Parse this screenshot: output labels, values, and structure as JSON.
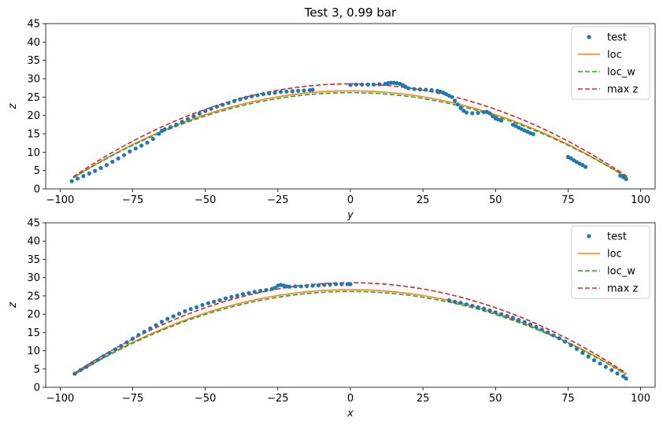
{
  "chart_data": [
    {
      "type": "line",
      "title": "Test 3, 0.99 bar",
      "xlabel": "y",
      "ylabel": "z",
      "xlim": [
        -105,
        105
      ],
      "ylim": [
        0,
        45
      ],
      "xticks": [
        -100,
        -75,
        -50,
        -25,
        0,
        25,
        50,
        75,
        100
      ],
      "xtick_labels": [
        "−100",
        "−75",
        "−50",
        "−25",
        "0",
        "25",
        "50",
        "75",
        "100"
      ],
      "yticks": [
        0,
        5,
        10,
        15,
        20,
        25,
        30,
        35,
        40,
        45
      ],
      "ytick_labels": [
        "0",
        "5",
        "10",
        "15",
        "20",
        "25",
        "30",
        "35",
        "40",
        "45"
      ],
      "legend": {
        "position": "top-right",
        "entries": [
          "test",
          "loc",
          "loc_w",
          "max z"
        ]
      },
      "series": [
        {
          "name": "test",
          "style": "markers",
          "color": "#1f77b4",
          "segments": [
            {
              "x": [
                -96,
                -94,
                -92,
                -90,
                -88,
                -86,
                -84,
                -82,
                -80,
                -78,
                -76,
                -74,
                -72,
                -70,
                -68,
                -66,
                -65,
                -64,
                -62,
                -60,
                -58,
                -56,
                -54,
                -52,
                -50,
                -48,
                -46,
                -44,
                -42,
                -40,
                -38,
                -36,
                -34,
                -32,
                -30,
                -28,
                -26,
                -24,
                -22,
                -20,
                -18,
                -16,
                -14,
                -13
              ],
              "y": [
                2.1,
                2.8,
                3.5,
                4.2,
                4.9,
                5.7,
                6.5,
                7.4,
                8.3,
                9.2,
                10.2,
                11.0,
                11.8,
                12.6,
                13.6,
                15.0,
                15.8,
                16.2,
                16.8,
                17.5,
                18.3,
                19.0,
                19.8,
                20.5,
                21.2,
                21.8,
                22.4,
                22.9,
                23.4,
                23.9,
                24.4,
                24.8,
                25.2,
                25.5,
                25.8,
                26.0,
                26.2,
                26.4,
                26.5,
                26.6,
                26.7,
                26.8,
                26.9,
                27.0
              ]
            },
            {
              "x": [
                0,
                2,
                4,
                6,
                8,
                10,
                12,
                13,
                14,
                15,
                16,
                17,
                18,
                19,
                20,
                22,
                24,
                26,
                28,
                30,
                31,
                32,
                33,
                34,
                35,
                36,
                37,
                38,
                39,
                40,
                42,
                44,
                46,
                47,
                48,
                49,
                50,
                51,
                52
              ],
              "y": [
                28.3,
                28.4,
                28.4,
                28.4,
                28.4,
                28.5,
                28.6,
                28.8,
                28.9,
                28.9,
                28.8,
                28.6,
                28.3,
                27.8,
                27.4,
                27.2,
                27.1,
                27.0,
                26.9,
                26.7,
                26.5,
                26.2,
                25.8,
                25.4,
                25.0,
                24.0,
                23.0,
                22.0,
                21.3,
                20.8,
                20.6,
                20.7,
                20.9,
                21.0,
                20.6,
                19.8,
                19.2,
                18.9,
                18.6
              ]
            },
            {
              "x": [
                56,
                57,
                58,
                59,
                60,
                61,
                62,
                63
              ],
              "y": [
                17.5,
                17.1,
                16.7,
                16.3,
                15.9,
                15.6,
                15.2,
                14.9
              ]
            },
            {
              "x": [
                75,
                76,
                77,
                78,
                79,
                80,
                81
              ],
              "y": [
                8.7,
                8.3,
                7.8,
                7.3,
                6.9,
                6.5,
                6.0
              ]
            },
            {
              "x": [
                93,
                94,
                95
              ],
              "y": [
                3.6,
                3.2,
                2.7
              ]
            }
          ]
        },
        {
          "name": "loc",
          "style": "solid",
          "color": "#ff7f0e",
          "x_from": -95.5,
          "x_to": 95.5,
          "peak": 26.7,
          "end": 3.0
        },
        {
          "name": "loc_w",
          "style": "dashed",
          "color": "#2ca02c",
          "x_from": -95.5,
          "x_to": 95.5,
          "peak": 26.2,
          "end": 3.0
        },
        {
          "name": "max z",
          "style": "dashed",
          "color": "#d62728",
          "x_from": -95.5,
          "x_to": 95.5,
          "peak": 28.6,
          "end": 3.3
        }
      ]
    },
    {
      "type": "line",
      "title": "",
      "xlabel": "x",
      "ylabel": "z",
      "xlim": [
        -105,
        105
      ],
      "ylim": [
        0,
        45
      ],
      "xticks": [
        -100,
        -75,
        -50,
        -25,
        0,
        25,
        50,
        75,
        100
      ],
      "xtick_labels": [
        "−100",
        "−75",
        "−50",
        "−25",
        "0",
        "25",
        "50",
        "75",
        "100"
      ],
      "yticks": [
        0,
        5,
        10,
        15,
        20,
        25,
        30,
        35,
        40,
        45
      ],
      "ytick_labels": [
        "0",
        "5",
        "10",
        "15",
        "20",
        "25",
        "30",
        "35",
        "40",
        "45"
      ],
      "legend": {
        "position": "top-right",
        "entries": [
          "test",
          "loc",
          "loc_w",
          "max z"
        ]
      },
      "series": [
        {
          "name": "test",
          "style": "markers",
          "color": "#1f77b4",
          "segments": [
            {
              "x": [
                -95,
                -93,
                -91,
                -89,
                -87,
                -85,
                -83,
                -81,
                -79,
                -77,
                -75,
                -73,
                -71,
                -69,
                -67,
                -65,
                -63,
                -61,
                -59,
                -57,
                -55,
                -53,
                -51,
                -49,
                -47,
                -45,
                -43,
                -41,
                -39,
                -37,
                -35,
                -33,
                -31,
                -29,
                -27,
                -26,
                -25,
                -24,
                -23,
                -22,
                -21,
                -19,
                -17,
                -15,
                -13,
                -11,
                -9,
                -7,
                -5,
                -3,
                -1,
                0
              ],
              "y": [
                3.7,
                4.7,
                5.6,
                6.6,
                7.5,
                8.5,
                9.4,
                10.4,
                11.3,
                12.3,
                13.3,
                14.3,
                15.2,
                16.1,
                17.0,
                17.9,
                18.7,
                19.4,
                20.1,
                20.8,
                21.4,
                21.9,
                22.5,
                23.0,
                23.4,
                23.8,
                24.3,
                24.7,
                25.1,
                25.5,
                25.8,
                26.1,
                26.4,
                26.6,
                26.9,
                27.2,
                27.8,
                28.0,
                27.8,
                27.6,
                27.5,
                27.6,
                27.6,
                27.7,
                27.8,
                27.9,
                28.0,
                28.1,
                28.2,
                28.2,
                28.2,
                28.2
              ]
            },
            {
              "x": [
                34,
                36,
                38,
                40,
                42,
                44,
                46,
                48,
                50,
                52,
                54,
                56,
                58,
                60,
                62,
                64,
                66,
                68,
                70,
                72,
                74,
                76,
                78,
                80,
                82,
                84,
                86,
                88,
                90,
                92,
                94,
                95
              ],
              "y": [
                23.8,
                23.4,
                23.1,
                22.7,
                22.3,
                21.9,
                21.5,
                21.0,
                20.5,
                20.0,
                19.5,
                19.0,
                18.4,
                17.8,
                17.2,
                16.5,
                15.8,
                15.0,
                14.2,
                13.4,
                12.5,
                11.5,
                10.5,
                9.4,
                8.4,
                7.4,
                6.5,
                5.6,
                4.7,
                3.8,
                3.0,
                2.4
              ]
            }
          ]
        },
        {
          "name": "loc",
          "style": "solid",
          "color": "#ff7f0e",
          "x_from": -95,
          "x_to": 95,
          "peak": 26.7,
          "end": 3.6
        },
        {
          "name": "loc_w",
          "style": "dashed",
          "color": "#2ca02c",
          "x_from": -95,
          "x_to": 95,
          "peak": 26.2,
          "end": 3.5
        },
        {
          "name": "max z",
          "style": "dashed",
          "color": "#d62728",
          "x_from": -95,
          "x_to": 95,
          "peak": 28.6,
          "end": 3.9
        }
      ]
    }
  ]
}
